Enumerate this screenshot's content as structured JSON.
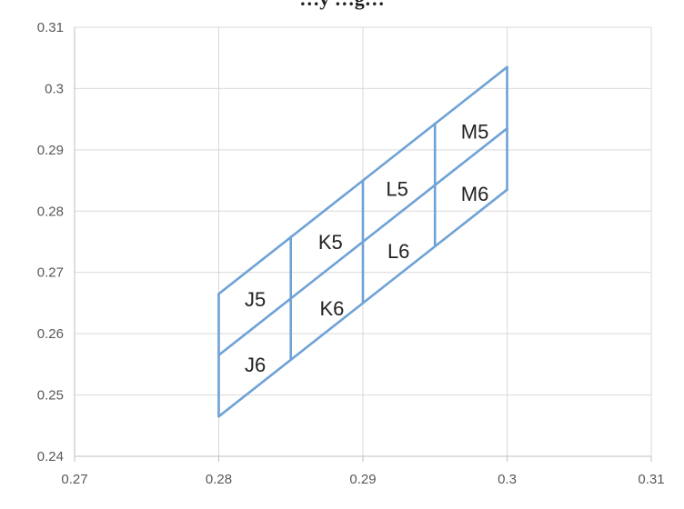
{
  "chart_data": {
    "type": "line",
    "title": "…y …g…",
    "xlabel": "",
    "ylabel": "",
    "xlim": [
      0.27,
      0.31
    ],
    "ylim": [
      0.24,
      0.31
    ],
    "x_ticks": [
      0.27,
      0.28,
      0.29,
      0.3,
      0.31
    ],
    "x_tick_labels": [
      "0.27",
      "0.28",
      "0.29",
      "0.3",
      "0.31"
    ],
    "y_ticks": [
      0.24,
      0.25,
      0.26,
      0.27,
      0.28,
      0.29,
      0.3,
      0.31
    ],
    "y_tick_labels": [
      "0.24",
      "0.25",
      "0.26",
      "0.27",
      "0.28",
      "0.29",
      "0.3",
      "0.31"
    ],
    "grid": true,
    "line_color": "#6fa2d6",
    "series": [
      {
        "points": [
          [
            0.28,
            0.2665
          ],
          [
            0.3,
            0.3035
          ]
        ]
      },
      {
        "points": [
          [
            0.28,
            0.2565
          ],
          [
            0.3,
            0.2935
          ]
        ]
      },
      {
        "points": [
          [
            0.28,
            0.2465
          ],
          [
            0.3,
            0.2835
          ]
        ]
      },
      {
        "points": [
          [
            0.28,
            0.2465
          ],
          [
            0.28,
            0.2665
          ]
        ]
      },
      {
        "points": [
          [
            0.285,
            0.2558
          ],
          [
            0.285,
            0.2758
          ]
        ]
      },
      {
        "points": [
          [
            0.29,
            0.265
          ],
          [
            0.29,
            0.285
          ]
        ]
      },
      {
        "points": [
          [
            0.295,
            0.2743
          ],
          [
            0.295,
            0.2943
          ]
        ]
      },
      {
        "points": [
          [
            0.3,
            0.2835
          ],
          [
            0.3,
            0.3035
          ]
        ]
      }
    ],
    "annotations": [
      {
        "text": "J5",
        "x": 0.2818,
        "y": 0.2645
      },
      {
        "text": "J6",
        "x": 0.2818,
        "y": 0.2538
      },
      {
        "text": "K5",
        "x": 0.2869,
        "y": 0.2738
      },
      {
        "text": "K6",
        "x": 0.287,
        "y": 0.263
      },
      {
        "text": "L5",
        "x": 0.2916,
        "y": 0.2825
      },
      {
        "text": "L6",
        "x": 0.2917,
        "y": 0.2723
      },
      {
        "text": "M5",
        "x": 0.2968,
        "y": 0.2918
      },
      {
        "text": "M6",
        "x": 0.2968,
        "y": 0.2817
      }
    ]
  }
}
